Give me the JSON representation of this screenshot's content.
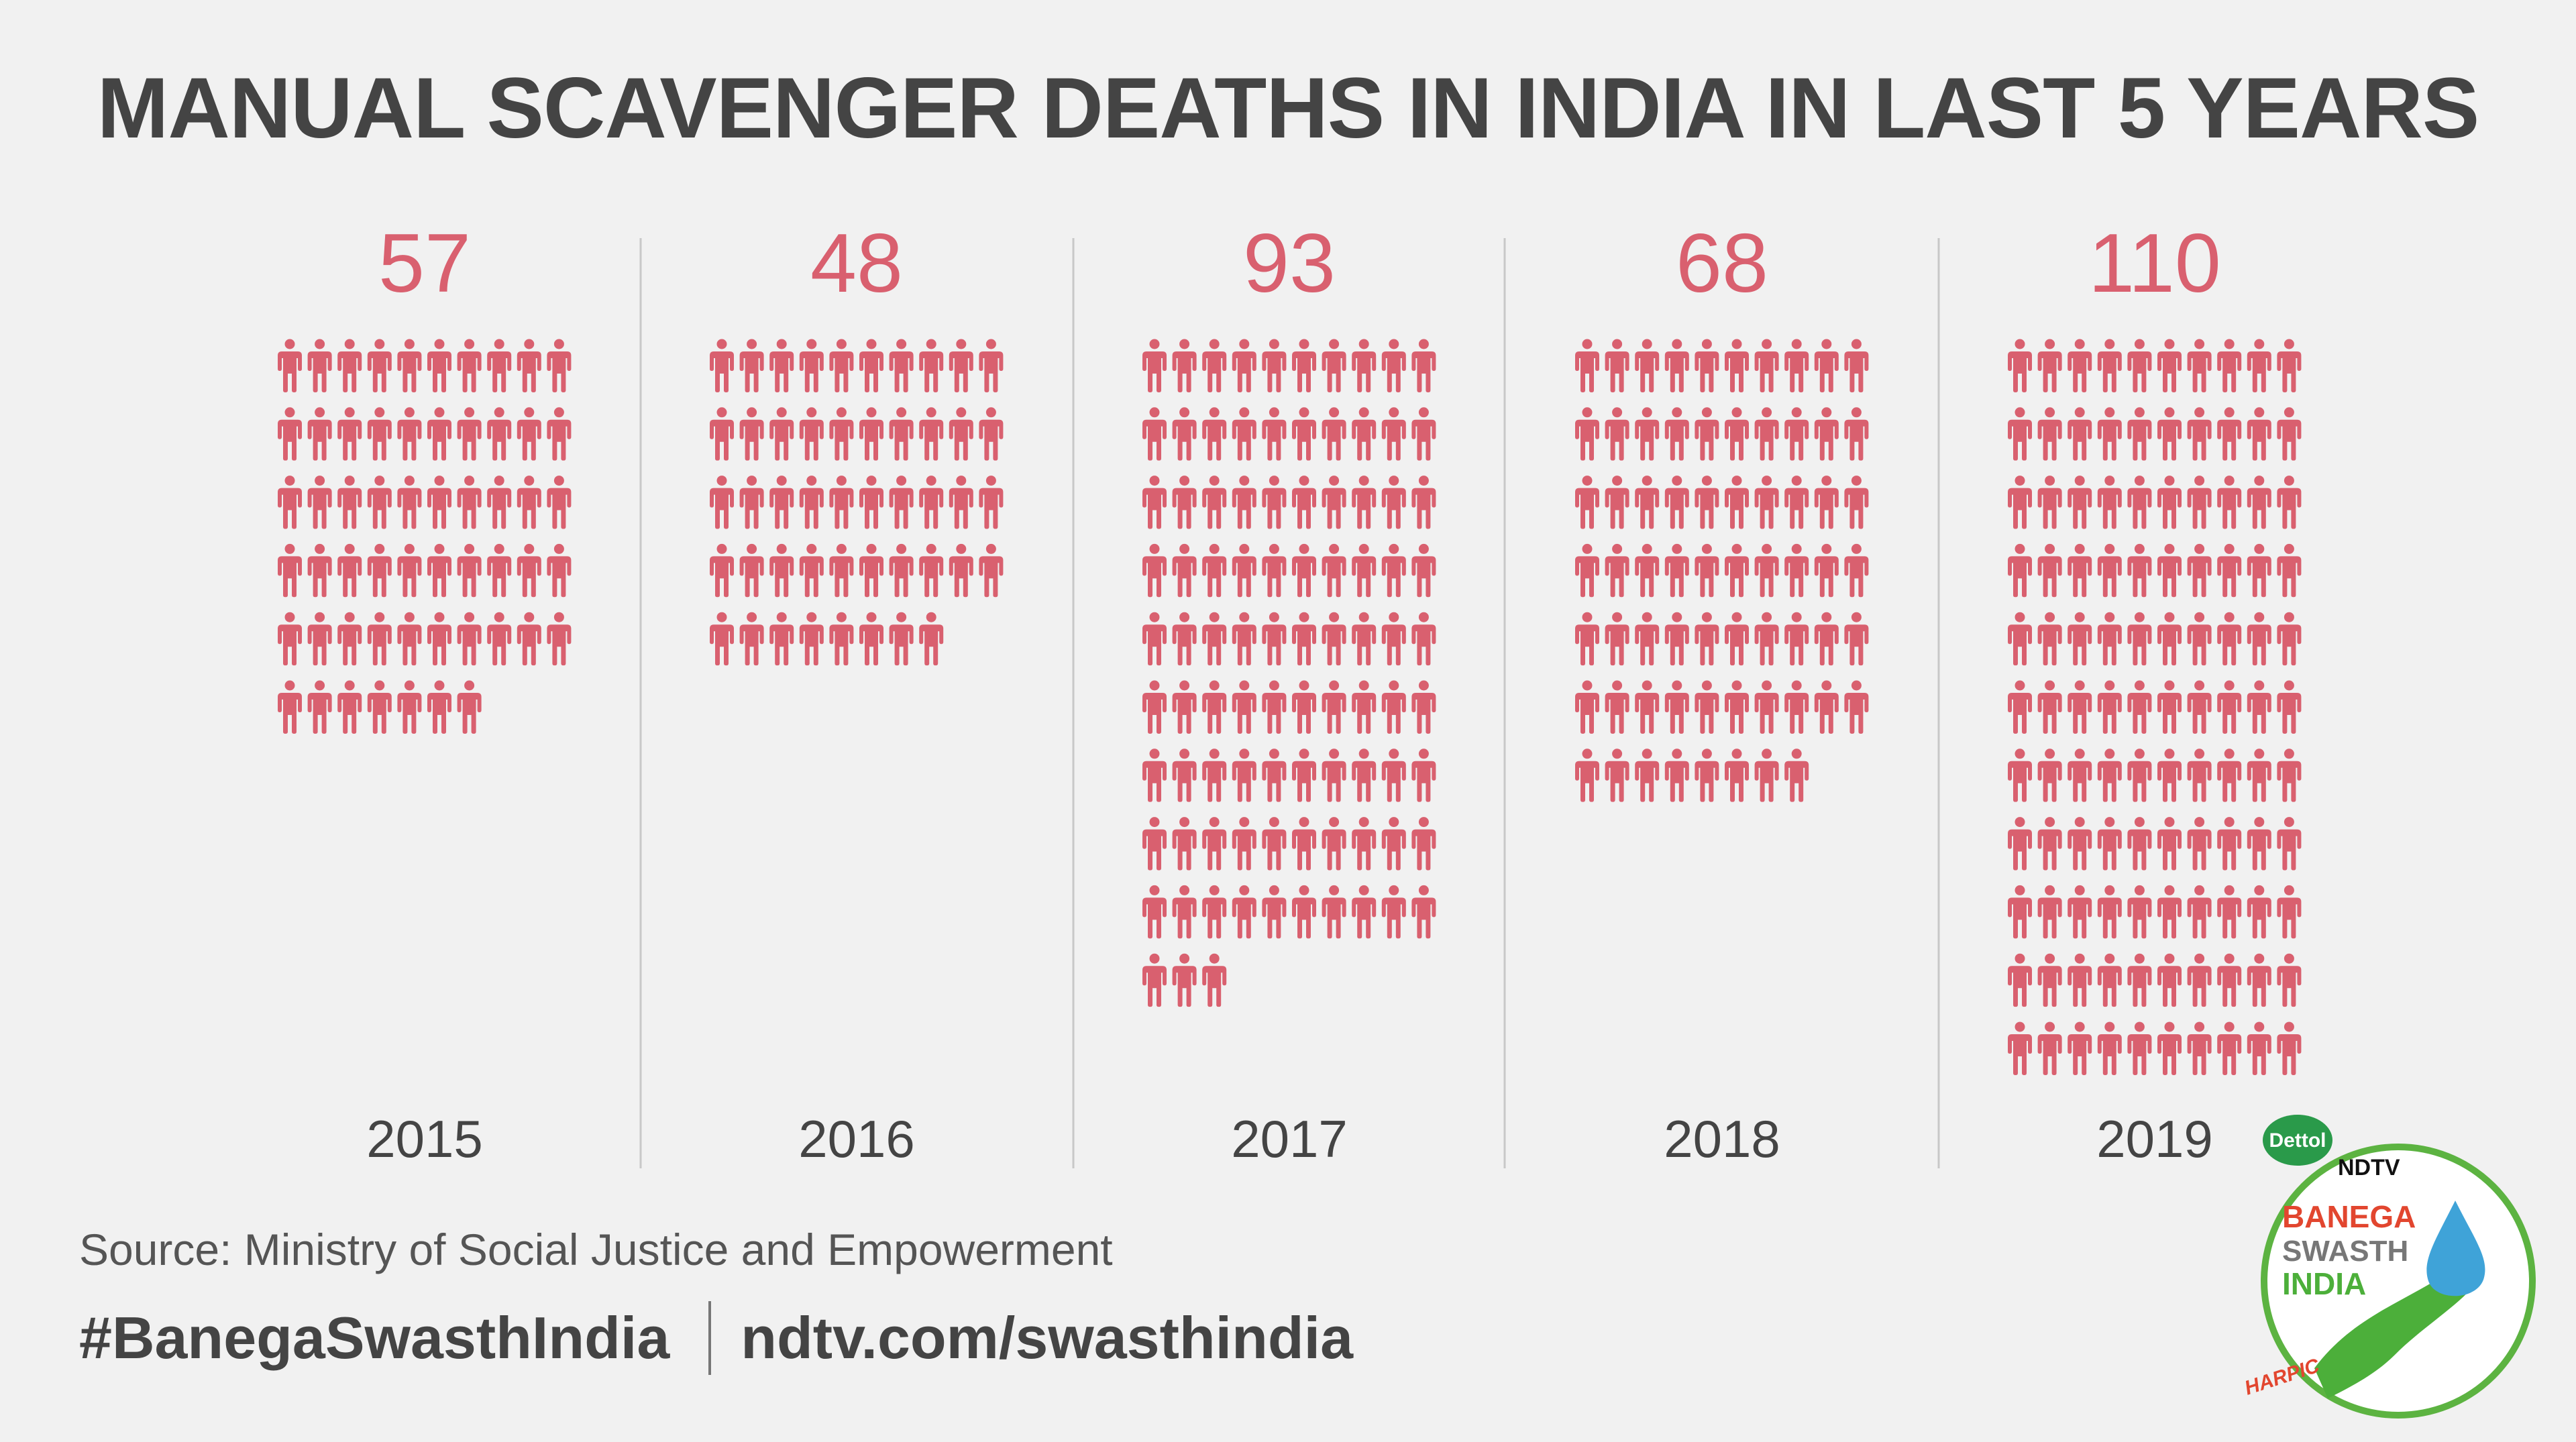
{
  "title": "MANUAL SCAVENGER DEATHS IN INDIA IN LAST 5 YEARS",
  "source": "Source: Ministry of Social Justice and Empowerment",
  "footer": {
    "hashtag": "#BanegaSwasthIndia",
    "url": "ndtv.com/swasthindia"
  },
  "logo": {
    "brand_top": "Dettol",
    "network": "NDTV",
    "line1": "BANEGA",
    "line2": "SWASTH",
    "line3": "INDIA",
    "sponsor": "HARPIC"
  },
  "colors": {
    "icon": "#d9606f",
    "value": "#d9606f",
    "text": "#444444",
    "background": "#f1f1f1",
    "divider": "#c8c8c8"
  },
  "icon_name": "person-icon",
  "chart_data": {
    "type": "bar",
    "title": "MANUAL SCAVENGER DEATHS IN INDIA IN LAST 5 YEARS",
    "categories": [
      "2015",
      "2016",
      "2017",
      "2018",
      "2019"
    ],
    "values": [
      57,
      48,
      93,
      68,
      110
    ],
    "grid": false,
    "legend": "none"
  }
}
